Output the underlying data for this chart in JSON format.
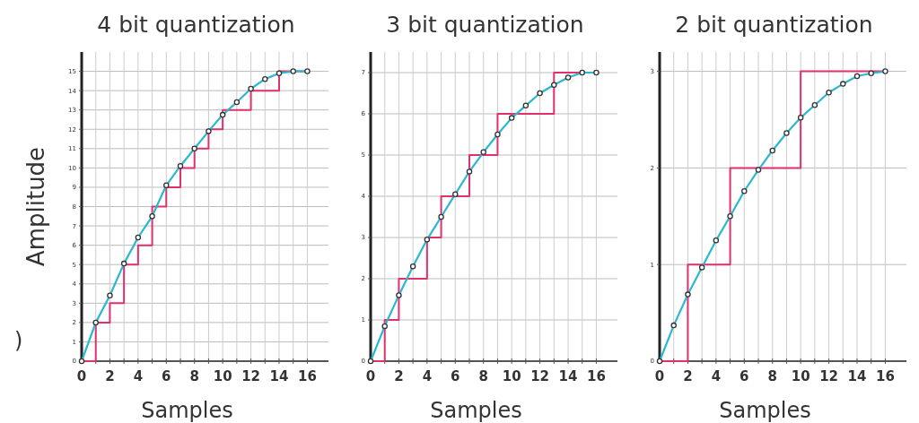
{
  "chart_data": [
    {
      "type": "line",
      "title": "4 bit quantization",
      "xlabel": "Samples",
      "ylabel": "Amplitude",
      "annotations": [
        ")"
      ],
      "grid": true,
      "marker": "circle",
      "xlim": [
        0,
        17.5
      ],
      "ylim": [
        0,
        16
      ],
      "xticks": [
        0,
        {
          "value": 1,
          "label": null
        },
        2,
        {
          "value": 3,
          "label": null
        },
        4,
        {
          "value": 5,
          "label": null
        },
        6,
        {
          "value": 7,
          "label": null
        },
        8,
        {
          "value": 9,
          "label": null
        },
        10,
        {
          "value": 11,
          "label": null
        },
        12,
        {
          "value": 13,
          "label": null
        },
        14,
        {
          "value": 15,
          "label": null
        },
        16
      ],
      "yticks": [
        0,
        1,
        2,
        3,
        4,
        5,
        6,
        7,
        8,
        9,
        10,
        11,
        12,
        13,
        14,
        15
      ],
      "x": [
        0,
        1,
        2,
        3,
        4,
        5,
        6,
        7,
        8,
        9,
        10,
        11,
        12,
        13,
        14,
        15,
        16
      ],
      "series": [
        {
          "type": "step",
          "color": "#e0306e",
          "marker": "none",
          "values": [
            0,
            2,
            3,
            5,
            6,
            8,
            9,
            10,
            11,
            12,
            13,
            13,
            14,
            14,
            15,
            15,
            15
          ]
        },
        {
          "color": "#2ab8d0",
          "values": [
            0,
            2.0,
            3.4,
            5.05,
            6.4,
            7.5,
            9.1,
            10.1,
            11.0,
            11.9,
            12.75,
            13.4,
            14.1,
            14.6,
            14.9,
            15.0,
            15.0
          ]
        }
      ]
    },
    {
      "type": "line",
      "title": "3 bit quantization",
      "xlabel": "Samples",
      "grid": true,
      "marker": "circle",
      "xlim": [
        0,
        17.5
      ],
      "ylim": [
        0,
        7.5
      ],
      "xticks": [
        0,
        {
          "value": 1,
          "label": null
        },
        2,
        {
          "value": 3,
          "label": null
        },
        4,
        {
          "value": 5,
          "label": null
        },
        6,
        {
          "value": 7,
          "label": null
        },
        8,
        {
          "value": 9,
          "label": null
        },
        10,
        {
          "value": 11,
          "label": null
        },
        12,
        {
          "value": 13,
          "label": null
        },
        14,
        {
          "value": 15,
          "label": null
        },
        16
      ],
      "yticks": [
        0,
        1,
        2,
        3,
        4,
        5,
        6,
        7
      ],
      "x": [
        0,
        1,
        2,
        3,
        4,
        5,
        6,
        7,
        8,
        9,
        10,
        11,
        12,
        13,
        14,
        15,
        16
      ],
      "series": [
        {
          "type": "step",
          "color": "#e0306e",
          "marker": "none",
          "values": [
            0,
            1,
            2,
            2,
            3,
            4,
            4,
            5,
            5,
            6,
            6,
            6,
            6,
            7,
            7,
            7,
            7
          ]
        },
        {
          "color": "#2ab8d0",
          "values": [
            0,
            0.85,
            1.6,
            2.3,
            2.95,
            3.5,
            4.05,
            4.6,
            5.07,
            5.5,
            5.9,
            6.2,
            6.5,
            6.7,
            6.88,
            7.0,
            7.0
          ]
        }
      ]
    },
    {
      "type": "line",
      "title": "2 bit quantization",
      "xlabel": "Samples",
      "grid": true,
      "marker": "circle",
      "xlim": [
        0,
        17.5
      ],
      "ylim": [
        0,
        3.2
      ],
      "xticks": [
        0,
        {
          "value": 1,
          "label": null
        },
        2,
        {
          "value": 3,
          "label": null
        },
        4,
        {
          "value": 5,
          "label": null
        },
        6,
        {
          "value": 7,
          "label": null
        },
        8,
        {
          "value": 9,
          "label": null
        },
        10,
        {
          "value": 11,
          "label": null
        },
        12,
        {
          "value": 13,
          "label": null
        },
        14,
        {
          "value": 15,
          "label": null
        },
        16
      ],
      "yticks": [
        0,
        1,
        2,
        3
      ],
      "x": [
        0,
        1,
        2,
        3,
        4,
        5,
        6,
        7,
        8,
        9,
        10,
        11,
        12,
        13,
        14,
        15,
        16
      ],
      "series": [
        {
          "type": "step",
          "color": "#e0306e",
          "marker": "none",
          "values": [
            0,
            0,
            1,
            1,
            1,
            2,
            2,
            2,
            2,
            2,
            3,
            3,
            3,
            3,
            3,
            3,
            3
          ]
        },
        {
          "color": "#2ab8d0",
          "values": [
            0,
            0.37,
            0.69,
            0.97,
            1.25,
            1.5,
            1.76,
            1.98,
            2.18,
            2.36,
            2.52,
            2.65,
            2.78,
            2.87,
            2.95,
            2.98,
            3.0
          ]
        }
      ]
    }
  ]
}
